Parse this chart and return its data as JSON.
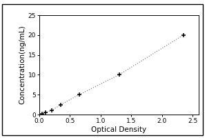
{
  "title": "",
  "xlabel": "Optical Density",
  "ylabel": "Concentration(ng/mL)",
  "xlim": [
    0,
    2.6
  ],
  "ylim": [
    0,
    25
  ],
  "xticks": [
    0,
    0.5,
    1,
    1.5,
    2,
    2.5
  ],
  "yticks": [
    0,
    5,
    10,
    15,
    20,
    25
  ],
  "x_data": [
    0.05,
    0.1,
    0.2,
    0.35,
    0.65,
    1.3,
    2.35
  ],
  "y_data": [
    0.2,
    0.5,
    1.0,
    2.5,
    5.0,
    10.0,
    20.0
  ],
  "line_color": "#888888",
  "marker": "+",
  "marker_color": "#000000",
  "marker_size": 5,
  "line_style": "dotted",
  "background_color": "#ffffff",
  "spine_color": "#000000",
  "tick_fontsize": 6.5,
  "label_fontsize": 7.5,
  "outer_border_color": "#000000",
  "fig_width": 3.0,
  "fig_height": 2.0
}
